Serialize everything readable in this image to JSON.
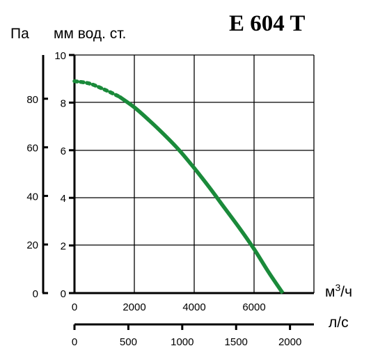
{
  "chart_data": {
    "type": "line",
    "title": "E 604 T",
    "ylabel_left": "Па",
    "ylabel_right": "мм вод. ст.",
    "xlabel_primary": "м³/ч",
    "xlabel_secondary": "л/с",
    "grid": true,
    "x_primary": {
      "range": [
        0,
        8000
      ],
      "ticks": [
        0,
        2000,
        4000,
        6000
      ]
    },
    "x_secondary": {
      "range": [
        0,
        2222
      ],
      "ticks": [
        0,
        500,
        1000,
        1500,
        2000
      ]
    },
    "y_mm": {
      "range": [
        0,
        10
      ],
      "ticks": [
        0,
        2,
        4,
        6,
        8,
        10
      ]
    },
    "y_pa": {
      "range": [
        0,
        98
      ],
      "ticks": [
        0,
        20,
        40,
        60,
        80
      ]
    },
    "series": [
      {
        "color": "#1a8a3a",
        "dashed_points": [
          [
            0,
            8.9
          ],
          [
            500,
            8.8
          ],
          [
            1000,
            8.55
          ],
          [
            1500,
            8.25
          ]
        ],
        "solid_points": [
          [
            1500,
            8.25
          ],
          [
            2000,
            7.8
          ],
          [
            2500,
            7.25
          ],
          [
            3000,
            6.65
          ],
          [
            3500,
            6.0
          ],
          [
            4000,
            5.25
          ],
          [
            4500,
            4.45
          ],
          [
            5000,
            3.6
          ],
          [
            5500,
            2.75
          ],
          [
            6000,
            1.85
          ],
          [
            6500,
            0.85
          ],
          [
            6960,
            0.0
          ]
        ]
      }
    ]
  }
}
